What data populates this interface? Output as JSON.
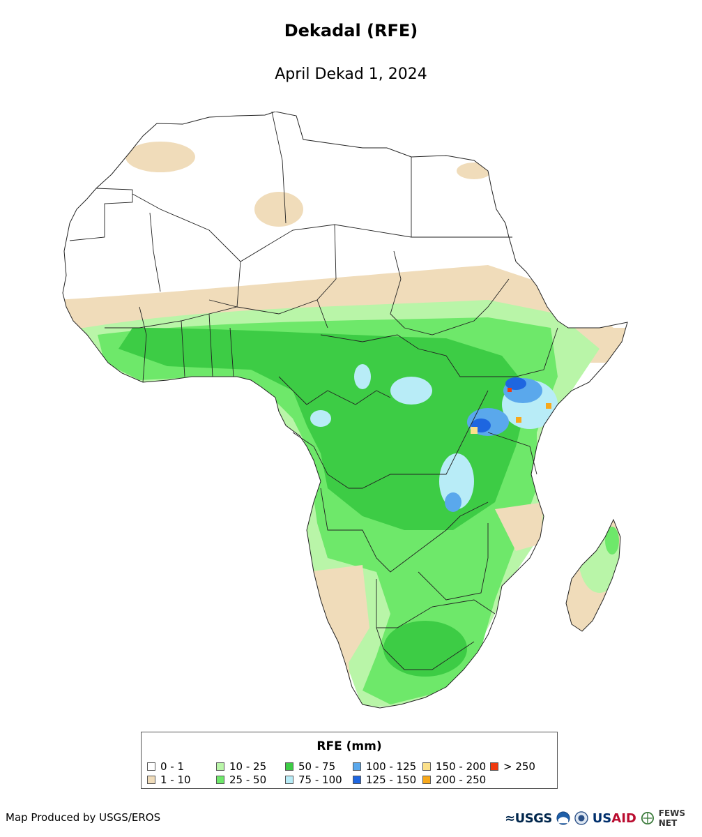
{
  "title": "Dekadal (RFE)",
  "subtitle": "April Dekad 1, 2024",
  "legend": {
    "title": "RFE (mm)",
    "classes": [
      {
        "label": "0 - 1",
        "color": "#ffffff"
      },
      {
        "label": "1 - 10",
        "color": "#f0dcba"
      },
      {
        "label": "10 - 25",
        "color": "#b9f5a8"
      },
      {
        "label": "25 - 50",
        "color": "#6ee86a"
      },
      {
        "label": "50 - 75",
        "color": "#3dcc45"
      },
      {
        "label": "75 - 100",
        "color": "#b8ecf7"
      },
      {
        "label": "100 - 125",
        "color": "#5aa8ec"
      },
      {
        "label": "125 - 150",
        "color": "#1e66e0"
      },
      {
        "label": "150 - 200",
        "color": "#fbe08a"
      },
      {
        "label": "200 - 250",
        "color": "#f7a81b"
      },
      {
        "label": "> 250",
        "color": "#f03a0f"
      }
    ]
  },
  "credit": "Map Produced by USGS/EROS",
  "logos": {
    "usgs": "≈USGS",
    "usaid_a": "US",
    "usaid_b": "AID",
    "fews": "FEWS NET"
  }
}
